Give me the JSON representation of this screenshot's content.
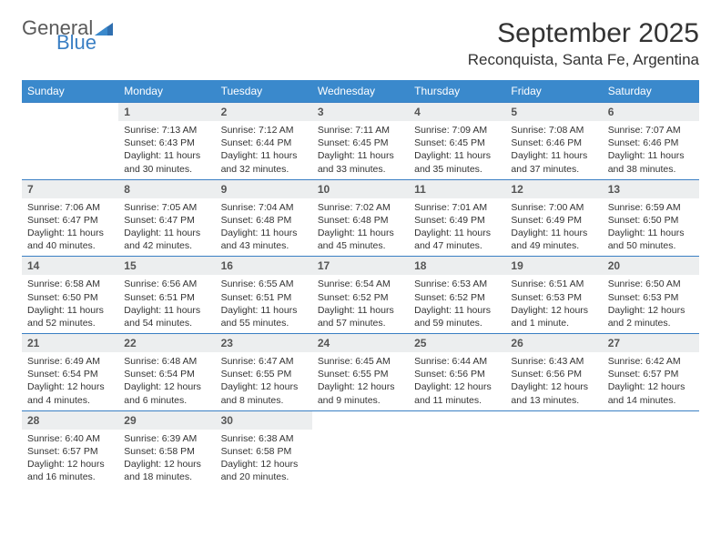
{
  "brand": {
    "text1": "General",
    "text2": "Blue",
    "color_gray": "#5a5a5a",
    "color_blue": "#3a7fc4"
  },
  "title": "September 2025",
  "location": "Reconquista, Santa Fe, Argentina",
  "colors": {
    "header_bg": "#3a89cc",
    "header_text": "#ffffff",
    "row_border": "#3a7fc4",
    "daynum_bg": "#eceeef",
    "body_text": "#333333"
  },
  "dayNames": [
    "Sunday",
    "Monday",
    "Tuesday",
    "Wednesday",
    "Thursday",
    "Friday",
    "Saturday"
  ],
  "weeks": [
    [
      null,
      {
        "n": "1",
        "sunrise": "7:13 AM",
        "sunset": "6:43 PM",
        "daylight": "11 hours and 30 minutes."
      },
      {
        "n": "2",
        "sunrise": "7:12 AM",
        "sunset": "6:44 PM",
        "daylight": "11 hours and 32 minutes."
      },
      {
        "n": "3",
        "sunrise": "7:11 AM",
        "sunset": "6:45 PM",
        "daylight": "11 hours and 33 minutes."
      },
      {
        "n": "4",
        "sunrise": "7:09 AM",
        "sunset": "6:45 PM",
        "daylight": "11 hours and 35 minutes."
      },
      {
        "n": "5",
        "sunrise": "7:08 AM",
        "sunset": "6:46 PM",
        "daylight": "11 hours and 37 minutes."
      },
      {
        "n": "6",
        "sunrise": "7:07 AM",
        "sunset": "6:46 PM",
        "daylight": "11 hours and 38 minutes."
      }
    ],
    [
      {
        "n": "7",
        "sunrise": "7:06 AM",
        "sunset": "6:47 PM",
        "daylight": "11 hours and 40 minutes."
      },
      {
        "n": "8",
        "sunrise": "7:05 AM",
        "sunset": "6:47 PM",
        "daylight": "11 hours and 42 minutes."
      },
      {
        "n": "9",
        "sunrise": "7:04 AM",
        "sunset": "6:48 PM",
        "daylight": "11 hours and 43 minutes."
      },
      {
        "n": "10",
        "sunrise": "7:02 AM",
        "sunset": "6:48 PM",
        "daylight": "11 hours and 45 minutes."
      },
      {
        "n": "11",
        "sunrise": "7:01 AM",
        "sunset": "6:49 PM",
        "daylight": "11 hours and 47 minutes."
      },
      {
        "n": "12",
        "sunrise": "7:00 AM",
        "sunset": "6:49 PM",
        "daylight": "11 hours and 49 minutes."
      },
      {
        "n": "13",
        "sunrise": "6:59 AM",
        "sunset": "6:50 PM",
        "daylight": "11 hours and 50 minutes."
      }
    ],
    [
      {
        "n": "14",
        "sunrise": "6:58 AM",
        "sunset": "6:50 PM",
        "daylight": "11 hours and 52 minutes."
      },
      {
        "n": "15",
        "sunrise": "6:56 AM",
        "sunset": "6:51 PM",
        "daylight": "11 hours and 54 minutes."
      },
      {
        "n": "16",
        "sunrise": "6:55 AM",
        "sunset": "6:51 PM",
        "daylight": "11 hours and 55 minutes."
      },
      {
        "n": "17",
        "sunrise": "6:54 AM",
        "sunset": "6:52 PM",
        "daylight": "11 hours and 57 minutes."
      },
      {
        "n": "18",
        "sunrise": "6:53 AM",
        "sunset": "6:52 PM",
        "daylight": "11 hours and 59 minutes."
      },
      {
        "n": "19",
        "sunrise": "6:51 AM",
        "sunset": "6:53 PM",
        "daylight": "12 hours and 1 minute."
      },
      {
        "n": "20",
        "sunrise": "6:50 AM",
        "sunset": "6:53 PM",
        "daylight": "12 hours and 2 minutes."
      }
    ],
    [
      {
        "n": "21",
        "sunrise": "6:49 AM",
        "sunset": "6:54 PM",
        "daylight": "12 hours and 4 minutes."
      },
      {
        "n": "22",
        "sunrise": "6:48 AM",
        "sunset": "6:54 PM",
        "daylight": "12 hours and 6 minutes."
      },
      {
        "n": "23",
        "sunrise": "6:47 AM",
        "sunset": "6:55 PM",
        "daylight": "12 hours and 8 minutes."
      },
      {
        "n": "24",
        "sunrise": "6:45 AM",
        "sunset": "6:55 PM",
        "daylight": "12 hours and 9 minutes."
      },
      {
        "n": "25",
        "sunrise": "6:44 AM",
        "sunset": "6:56 PM",
        "daylight": "12 hours and 11 minutes."
      },
      {
        "n": "26",
        "sunrise": "6:43 AM",
        "sunset": "6:56 PM",
        "daylight": "12 hours and 13 minutes."
      },
      {
        "n": "27",
        "sunrise": "6:42 AM",
        "sunset": "6:57 PM",
        "daylight": "12 hours and 14 minutes."
      }
    ],
    [
      {
        "n": "28",
        "sunrise": "6:40 AM",
        "sunset": "6:57 PM",
        "daylight": "12 hours and 16 minutes."
      },
      {
        "n": "29",
        "sunrise": "6:39 AM",
        "sunset": "6:58 PM",
        "daylight": "12 hours and 18 minutes."
      },
      {
        "n": "30",
        "sunrise": "6:38 AM",
        "sunset": "6:58 PM",
        "daylight": "12 hours and 20 minutes."
      },
      null,
      null,
      null,
      null
    ]
  ],
  "labels": {
    "sunrise": "Sunrise:",
    "sunset": "Sunset:",
    "daylight": "Daylight:"
  }
}
